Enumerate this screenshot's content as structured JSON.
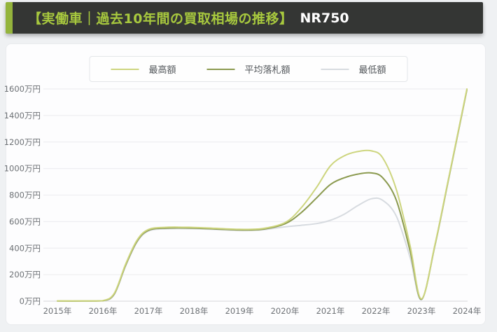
{
  "header": {
    "title": "【実働車｜過去10年間の買取相場の推移】",
    "model": "NR750"
  },
  "colors": {
    "header_bg": "#343634",
    "header_accent": "#94b43c",
    "header_title_text": "#a8c93e",
    "header_model_text": "#ffffff",
    "grid_line": "#ececef",
    "axis_line": "#d7d8db",
    "axis_text": "#6d7175",
    "card_bg": "#fdfdfe",
    "page_bg": "#eff1f3"
  },
  "chart_data": {
    "type": "line",
    "title": "実働車｜過去10年間の買取相場の推移 NR750",
    "xlabel": "",
    "ylabel": "",
    "unit": "万円",
    "grid": true,
    "legend_position": "top-center",
    "xlim": [
      2015,
      2024
    ],
    "ylim": [
      0,
      1600
    ],
    "x_ticks": [
      2015,
      2016,
      2017,
      2018,
      2019,
      2020,
      2021,
      2022,
      2023,
      2024
    ],
    "x_tick_labels": [
      "2015年",
      "2016年",
      "2017年",
      "2018年",
      "2019年",
      "2020年",
      "2021年",
      "2022年",
      "2023年",
      "2024年"
    ],
    "y_ticks": [
      0,
      200,
      400,
      600,
      800,
      1000,
      1200,
      1400,
      1600
    ],
    "y_tick_labels": [
      "0万円",
      "200万円",
      "400万円",
      "600万円",
      "800万円",
      "1000万円",
      "1200万円",
      "1400万円",
      "1600万円"
    ],
    "x": [
      2015,
      2015.6,
      2016,
      2016.25,
      2016.5,
      2016.75,
      2017,
      2017.4,
      2018,
      2018.5,
      2019,
      2019.5,
      2020,
      2020.35,
      2020.7,
      2021,
      2021.3,
      2021.6,
      2021.9,
      2022.15,
      2022.45,
      2022.75,
      2023,
      2023.3,
      2023.6,
      2024
    ],
    "yearly_summary": {
      "years": [
        2015,
        2016,
        2017,
        2018,
        2019,
        2020,
        2021,
        2022,
        2023,
        2024
      ],
      "最高額": [
        0,
        4,
        540,
        556,
        542,
        592,
        1020,
        1110,
        18,
        1600
      ],
      "平均落札額": [
        0,
        3,
        534,
        551,
        537,
        583,
        880,
        950,
        14,
        1595
      ],
      "最低額": [
        0,
        2,
        528,
        546,
        533,
        560,
        610,
        770,
        10,
        1590
      ]
    },
    "series": [
      {
        "name": "最高額",
        "color": "#cdd57e",
        "values": [
          2,
          2,
          4,
          60,
          280,
          460,
          540,
          557,
          556,
          549,
          542,
          547,
          592,
          700,
          860,
          1020,
          1095,
          1128,
          1133,
          1080,
          840,
          420,
          18,
          430,
          930,
          1600
        ]
      },
      {
        "name": "平均落札額",
        "color": "#8b9a4f",
        "values": [
          1,
          1,
          3,
          55,
          272,
          452,
          534,
          551,
          551,
          544,
          537,
          542,
          583,
          665,
          780,
          880,
          930,
          958,
          967,
          930,
          760,
          380,
          14,
          425,
          925,
          1595
        ]
      },
      {
        "name": "最低額",
        "color": "#d7dbe0",
        "values": [
          0,
          0,
          2,
          50,
          265,
          445,
          528,
          546,
          546,
          540,
          533,
          538,
          560,
          572,
          585,
          610,
          655,
          720,
          772,
          760,
          640,
          330,
          10,
          420,
          920,
          1590
        ]
      }
    ]
  }
}
